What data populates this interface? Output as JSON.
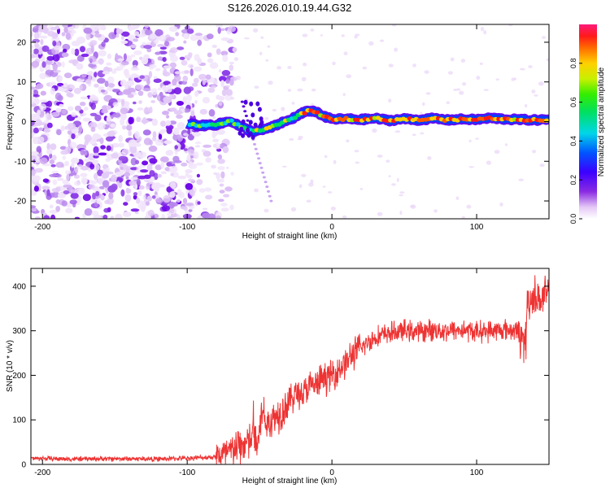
{
  "title": "S126.2026.010.19.44.G32",
  "chart_data": [
    {
      "type": "heatmap",
      "title": "S126.2026.010.19.44.G32",
      "xlabel": "Height of straight line (km)",
      "ylabel": "Frequency (Hz)",
      "xlim": [
        -208,
        150
      ],
      "ylim": [
        -24.5,
        24.5
      ],
      "x_ticks": [
        -200,
        -100,
        0,
        100
      ],
      "y_ticks": [
        -20,
        -10,
        0,
        10,
        20
      ],
      "noise_region_x": [
        -208,
        -75
      ],
      "signal_start_x": -100,
      "trace": {
        "x": [
          -100,
          -90,
          -80,
          -70,
          -62,
          -55,
          -50,
          -45,
          -40,
          -35,
          -30,
          -25,
          -20,
          -15,
          -10,
          -5,
          0,
          10,
          20,
          30,
          40,
          50,
          60,
          70,
          80,
          90,
          100,
          110,
          120,
          130,
          140,
          150
        ],
        "y": [
          -0.5,
          -1.0,
          -0.8,
          0.2,
          -1.5,
          -2.5,
          -2.3,
          -1.8,
          -1.2,
          -0.3,
          0.3,
          1.2,
          2.2,
          2.8,
          2.3,
          1.2,
          0.6,
          0.7,
          0.5,
          0.8,
          0.3,
          0.7,
          0.4,
          0.8,
          0.4,
          0.6,
          0.5,
          0.9,
          0.6,
          0.5,
          0.4,
          0.5
        ]
      },
      "colorbar": {
        "label": "Normalized spectral amplitude",
        "range": [
          0.0,
          1.0
        ],
        "ticks": [
          0.0,
          0.2,
          0.4,
          0.6,
          0.8
        ],
        "tick_labels": [
          "0.0",
          "0.2",
          "0.4",
          "0.6",
          "0.8"
        ]
      }
    },
    {
      "type": "line",
      "xlabel": "Height of straight line (km)",
      "ylabel": "SNR (10 * v/v)",
      "xlim": [
        -208,
        150
      ],
      "ylim": [
        0,
        440
      ],
      "x_ticks": [
        -200,
        -100,
        0,
        100
      ],
      "y_ticks": [
        0,
        100,
        200,
        300,
        400
      ],
      "color": "#ee3333",
      "series": [
        {
          "name": "SNR",
          "x": [
            -208,
            -180,
            -150,
            -120,
            -100,
            -85,
            -75,
            -70,
            -65,
            -60,
            -55,
            -50,
            -48,
            -45,
            -40,
            -35,
            -30,
            -25,
            -20,
            -15,
            -10,
            -5,
            0,
            5,
            10,
            15,
            20,
            25,
            30,
            40,
            50,
            60,
            70,
            80,
            90,
            100,
            110,
            120,
            130,
            133,
            135,
            140,
            145,
            150
          ],
          "y": [
            14,
            12,
            13,
            12,
            14,
            16,
            20,
            28,
            40,
            45,
            55,
            80,
            130,
            90,
            105,
            120,
            140,
            160,
            160,
            175,
            180,
            195,
            200,
            215,
            230,
            250,
            260,
            275,
            285,
            295,
            300,
            298,
            302,
            300,
            302,
            298,
            300,
            302,
            300,
            280,
            360,
            380,
            370,
            385
          ]
        }
      ]
    }
  ]
}
